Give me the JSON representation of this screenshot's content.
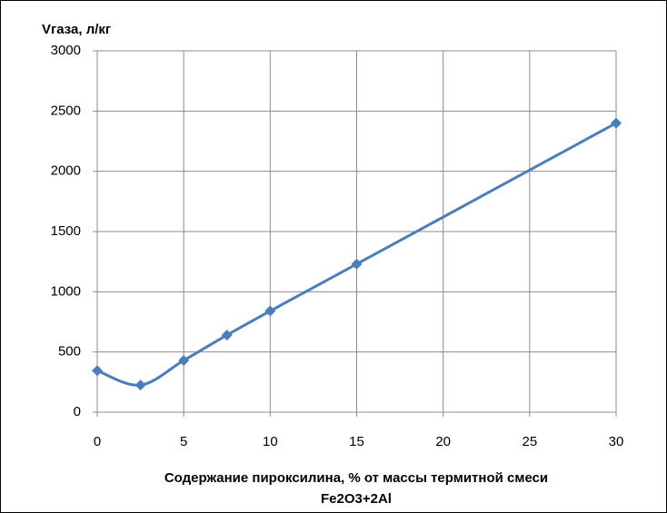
{
  "chart_data": {
    "type": "line",
    "y_label": "Vгаза, л/кг",
    "x_label_lines": [
      "Содержание пироксилина, % от массы термитной смеси",
      "Fe2O3+2Al"
    ],
    "x": [
      0,
      2.5,
      5,
      7.5,
      10,
      15,
      30
    ],
    "series": [
      {
        "name": "Vгаза",
        "color": "#4a7ebb",
        "values": [
          345,
          225,
          430,
          640,
          840,
          1230,
          2400
        ]
      }
    ],
    "xlim": [
      0,
      30
    ],
    "xticks": [
      0,
      5,
      10,
      15,
      20,
      25,
      30
    ],
    "ylim": [
      0,
      3000
    ],
    "yticks": [
      0,
      500,
      1000,
      1500,
      2000,
      2500,
      3000
    ],
    "grid": true,
    "smooth": true,
    "marker": "diamond"
  }
}
